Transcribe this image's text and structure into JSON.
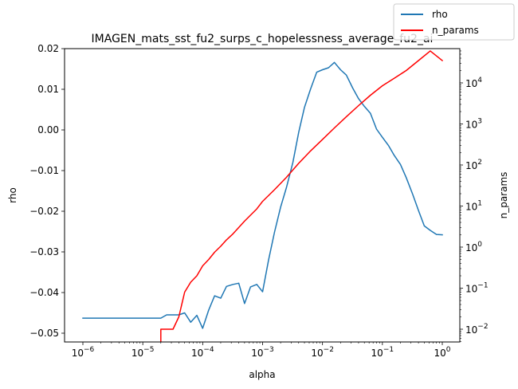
{
  "chart_data": {
    "type": "line",
    "title": "IMAGEN_mats_sst_fu2_surps_c_hopelessness_average_fu2_ai",
    "xlabel": "alpha",
    "ylabel_left": "rho",
    "ylabel_right": "n_params",
    "x_scale": "log",
    "x_ticks": [
      {
        "value": 1e-06,
        "base": "10",
        "exp": "−6"
      },
      {
        "value": 1e-05,
        "base": "10",
        "exp": "−5"
      },
      {
        "value": 0.0001,
        "base": "10",
        "exp": "−4"
      },
      {
        "value": 0.001,
        "base": "10",
        "exp": "−3"
      },
      {
        "value": 0.01,
        "base": "10",
        "exp": "−2"
      },
      {
        "value": 0.1,
        "base": "10",
        "exp": "−1"
      },
      {
        "value": 1,
        "base": "10",
        "exp": "0"
      }
    ],
    "y_left_ticks": [
      "0.02",
      "0.01",
      "0.00",
      "−0.01",
      "−0.02",
      "−0.03",
      "−0.04",
      "−0.05"
    ],
    "y_left_tick_values": [
      0.02,
      0.01,
      0.0,
      -0.01,
      -0.02,
      -0.03,
      -0.04,
      -0.05
    ],
    "y_left_range": [
      -0.0518,
      0.02
    ],
    "y_right_scale": "log",
    "y_right_ticks": [
      {
        "value": 0.01,
        "base": "10",
        "exp": "−2"
      },
      {
        "value": 0.1,
        "base": "10",
        "exp": "−1"
      },
      {
        "value": 1,
        "base": "10",
        "exp": "0"
      },
      {
        "value": 10,
        "base": "10",
        "exp": "1"
      },
      {
        "value": 100,
        "base": "10",
        "exp": "2"
      },
      {
        "value": 1000,
        "base": "10",
        "exp": "3"
      },
      {
        "value": 10000,
        "base": "10",
        "exp": "4"
      }
    ],
    "y_right_range": [
      0.005,
      100000
    ],
    "legend": {
      "placement": "top-right",
      "entries": [
        "rho",
        "n_params"
      ]
    },
    "grid": false,
    "series": [
      {
        "name": "rho",
        "axis": "left",
        "color": "#1f77b4",
        "x": [
          1e-06,
          1.3e-06,
          1.6e-06,
          2e-06,
          2.5e-06,
          3.2e-06,
          4e-06,
          5e-06,
          6.3e-06,
          8e-06,
          1e-05,
          1.26e-05,
          1.58e-05,
          2e-05,
          2.5e-05,
          3.2e-05,
          4e-05,
          5e-05,
          6.3e-05,
          8e-05,
          0.0001,
          0.000126,
          0.000158,
          0.0002,
          0.00025,
          0.00032,
          0.0004,
          0.0005,
          0.00063,
          0.0008,
          0.001,
          0.00126,
          0.00158,
          0.002,
          0.0025,
          0.0032,
          0.004,
          0.005,
          0.0063,
          0.008,
          0.01,
          0.0126,
          0.0158,
          0.02,
          0.025,
          0.032,
          0.04,
          0.05,
          0.063,
          0.08,
          0.1,
          0.126,
          0.158,
          0.2,
          0.25,
          0.32,
          0.4,
          0.5,
          0.63,
          0.8,
          1
        ],
        "y": [
          -0.0463,
          -0.0463,
          -0.0463,
          -0.0463,
          -0.0463,
          -0.0463,
          -0.0463,
          -0.0463,
          -0.0463,
          -0.0463,
          -0.0463,
          -0.0463,
          -0.0463,
          -0.0463,
          -0.0455,
          -0.0455,
          -0.0455,
          -0.045,
          -0.0473,
          -0.0456,
          -0.0488,
          -0.0443,
          -0.0408,
          -0.0414,
          -0.0385,
          -0.038,
          -0.0377,
          -0.0427,
          -0.0386,
          -0.038,
          -0.0398,
          -0.032,
          -0.0252,
          -0.019,
          -0.0142,
          -0.008,
          -0.0006,
          0.0055,
          0.01,
          0.0142,
          0.0148,
          0.0153,
          0.0166,
          0.0148,
          0.0135,
          0.0103,
          0.0077,
          0.0058,
          0.0041,
          0.0002,
          -0.0018,
          -0.0038,
          -0.0063,
          -0.0085,
          -0.0117,
          -0.0158,
          -0.0198,
          -0.0236,
          -0.0247,
          -0.0257,
          -0.0258
        ]
      },
      {
        "name": "n_params",
        "axis": "right",
        "color": "#ff0000",
        "x": [
          2e-05,
          2e-05,
          3.2e-05,
          4e-05,
          5e-05,
          6.3e-05,
          8e-05,
          0.0001,
          0.000126,
          0.000158,
          0.0002,
          0.00025,
          0.00032,
          0.0004,
          0.0005,
          0.00063,
          0.0008,
          0.001,
          0.00158,
          0.0025,
          0.004,
          0.0063,
          0.01,
          0.0158,
          0.025,
          0.04,
          0.063,
          0.1,
          0.158,
          0.25,
          0.4,
          0.63,
          1
        ],
        "y": [
          0.005,
          0.01,
          0.01,
          0.02,
          0.08,
          0.14,
          0.2,
          0.35,
          0.5,
          0.75,
          1.05,
          1.5,
          2.1,
          3.0,
          4.3,
          6.0,
          8.5,
          13,
          25,
          50,
          110,
          220,
          420,
          800,
          1500,
          2800,
          5000,
          8500,
          13000,
          20000,
          35000,
          60000,
          35000
        ]
      }
    ]
  }
}
